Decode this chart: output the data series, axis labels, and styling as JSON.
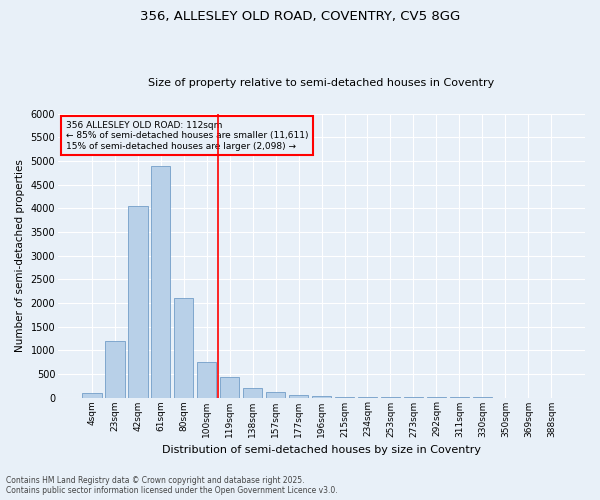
{
  "title_line1": "356, ALLESLEY OLD ROAD, COVENTRY, CV5 8GG",
  "title_line2": "Size of property relative to semi-detached houses in Coventry",
  "xlabel": "Distribution of semi-detached houses by size in Coventry",
  "ylabel": "Number of semi-detached properties",
  "categories": [
    "4sqm",
    "23sqm",
    "42sqm",
    "61sqm",
    "80sqm",
    "100sqm",
    "119sqm",
    "138sqm",
    "157sqm",
    "177sqm",
    "196sqm",
    "215sqm",
    "234sqm",
    "253sqm",
    "273sqm",
    "292sqm",
    "311sqm",
    "330sqm",
    "350sqm",
    "369sqm",
    "388sqm"
  ],
  "values": [
    90,
    1200,
    4050,
    4900,
    2100,
    750,
    430,
    200,
    125,
    50,
    25,
    15,
    8,
    4,
    2,
    2,
    1,
    1,
    0,
    0,
    0
  ],
  "bar_color": "#b8d0e8",
  "bar_edge_color": "#6090c0",
  "red_line_x": 5.5,
  "annotation_text_line1": "356 ALLESLEY OLD ROAD: 112sqm",
  "annotation_text_line2": "← 85% of semi-detached houses are smaller (11,611)",
  "annotation_text_line3": "15% of semi-detached houses are larger (2,098) →",
  "ylim": [
    0,
    6000
  ],
  "yticks": [
    0,
    500,
    1000,
    1500,
    2000,
    2500,
    3000,
    3500,
    4000,
    4500,
    5000,
    5500,
    6000
  ],
  "bg_color": "#e8f0f8",
  "grid_color": "#ffffff",
  "annotation_box_color": "#ff0000",
  "footer_line1": "Contains HM Land Registry data © Crown copyright and database right 2025.",
  "footer_line2": "Contains public sector information licensed under the Open Government Licence v3.0."
}
